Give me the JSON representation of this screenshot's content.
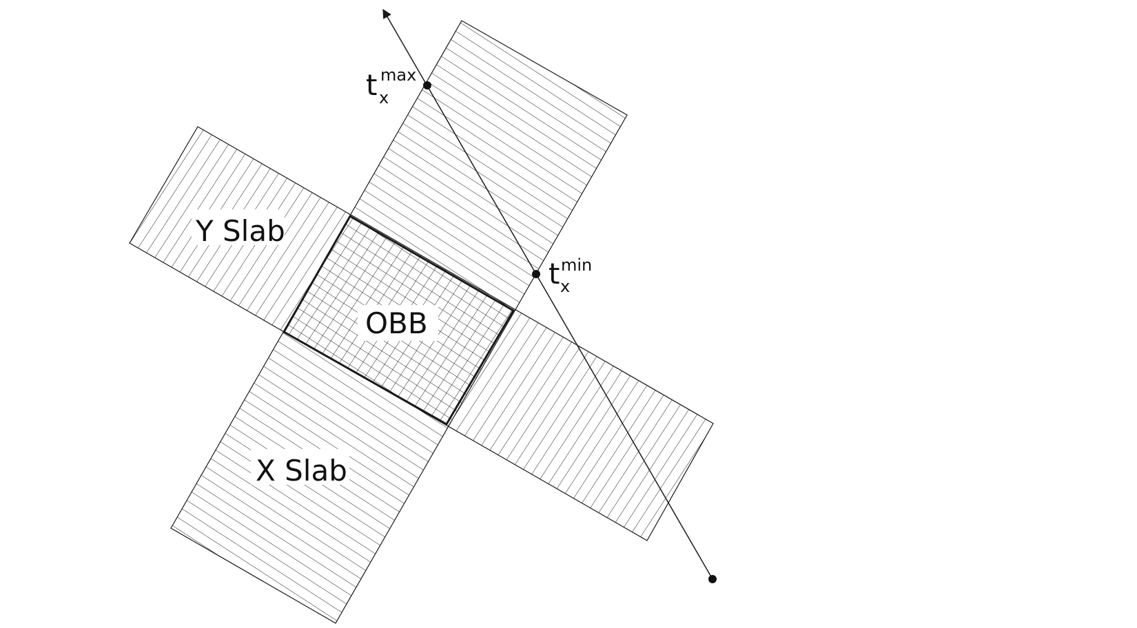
{
  "labels": {
    "y_slab": "Y Slab",
    "x_slab": "X Slab",
    "obb": "OBB",
    "t_max": {
      "base": "t",
      "sub": "x",
      "sup": "max"
    },
    "t_min": {
      "base": "t",
      "sub": "x",
      "sup": "min"
    }
  },
  "colors": {
    "stroke": "#1a1a1a",
    "background": "#ffffff"
  }
}
